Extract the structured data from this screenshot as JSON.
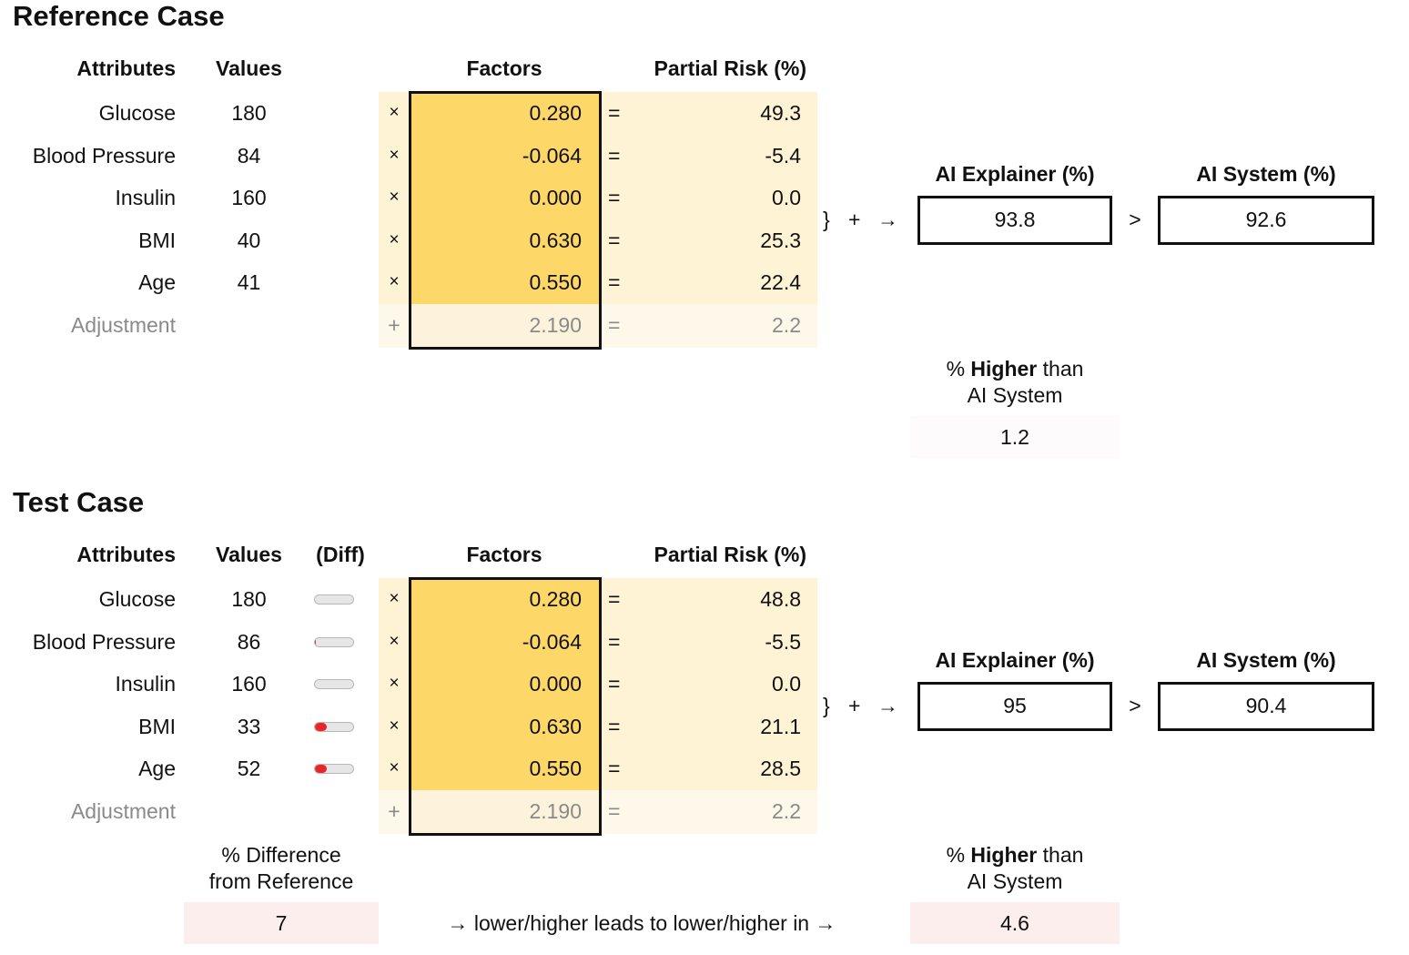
{
  "reference": {
    "title": "Reference Case",
    "headers": {
      "attributes": "Attributes",
      "values": "Values",
      "factors": "Factors",
      "partial_risk": "Partial Risk (%)"
    },
    "rows": [
      {
        "attribute": "Glucose",
        "value": "180",
        "op": "×",
        "factor": "0.280",
        "eq": "=",
        "partial": "49.3"
      },
      {
        "attribute": "Blood Pressure",
        "value": "84",
        "op": "×",
        "factor": "-0.064",
        "eq": "=",
        "partial": "-5.4"
      },
      {
        "attribute": "Insulin",
        "value": "160",
        "op": "×",
        "factor": "0.000",
        "eq": "=",
        "partial": "0.0"
      },
      {
        "attribute": "BMI",
        "value": "40",
        "op": "×",
        "factor": "0.630",
        "eq": "=",
        "partial": "25.3"
      },
      {
        "attribute": "Age",
        "value": "41",
        "op": "×",
        "factor": "0.550",
        "eq": "=",
        "partial": "22.4"
      }
    ],
    "adjustment": {
      "label": "Adjustment",
      "op": "+",
      "factor": "2.190",
      "eq": "=",
      "partial": "2.2"
    },
    "sum_symbols": {
      "brace": "}",
      "plus": "+",
      "arrow": "→"
    },
    "explainer": {
      "label": "AI Explainer (%)",
      "value": "93.8"
    },
    "comparison": ">",
    "system": {
      "label": "AI System (%)",
      "value": "92.6"
    },
    "higher": {
      "prefix": "%",
      "bold": "Higher",
      "suffix": "than",
      "line2": "AI System",
      "value": "1.2"
    }
  },
  "test": {
    "title": "Test Case",
    "headers": {
      "attributes": "Attributes",
      "values": "Values",
      "diff": "(Diff)",
      "factors": "Factors",
      "partial_risk": "Partial Risk (%)"
    },
    "rows": [
      {
        "attribute": "Glucose",
        "value": "180",
        "diff": 0.0,
        "op": "×",
        "factor": "0.280",
        "eq": "=",
        "partial": "48.8"
      },
      {
        "attribute": "Blood Pressure",
        "value": "86",
        "diff": 0.03,
        "op": "×",
        "factor": "-0.064",
        "eq": "=",
        "partial": "-5.5"
      },
      {
        "attribute": "Insulin",
        "value": "160",
        "diff": 0.0,
        "op": "×",
        "factor": "0.000",
        "eq": "=",
        "partial": "0.0"
      },
      {
        "attribute": "BMI",
        "value": "33",
        "diff": 0.3,
        "op": "×",
        "factor": "0.630",
        "eq": "=",
        "partial": "21.1"
      },
      {
        "attribute": "Age",
        "value": "52",
        "diff": 0.3,
        "op": "×",
        "factor": "0.550",
        "eq": "=",
        "partial": "28.5"
      }
    ],
    "adjustment": {
      "label": "Adjustment",
      "op": "+",
      "factor": "2.190",
      "eq": "=",
      "partial": "2.2"
    },
    "sum_symbols": {
      "brace": "}",
      "plus": "+",
      "arrow": "→"
    },
    "explainer": {
      "label": "AI Explainer (%)",
      "value": "95"
    },
    "comparison": ">",
    "system": {
      "label": "AI System (%)",
      "value": "90.4"
    },
    "difference": {
      "line1": "% Difference",
      "line2": "from Reference",
      "value": "7"
    },
    "relation_text": "→ lower/higher leads to lower/higher in →",
    "higher": {
      "prefix": "%",
      "bold": "Higher",
      "suffix": "than",
      "line2": "AI System",
      "value": "4.6"
    }
  },
  "colors": {
    "factor_bg": "#fdd868",
    "partial_bg": "#fef3d4",
    "diff_fill": "#e8262a",
    "highlight_bg": "#fdeeee",
    "faint_bg": "#fdfbfb"
  }
}
